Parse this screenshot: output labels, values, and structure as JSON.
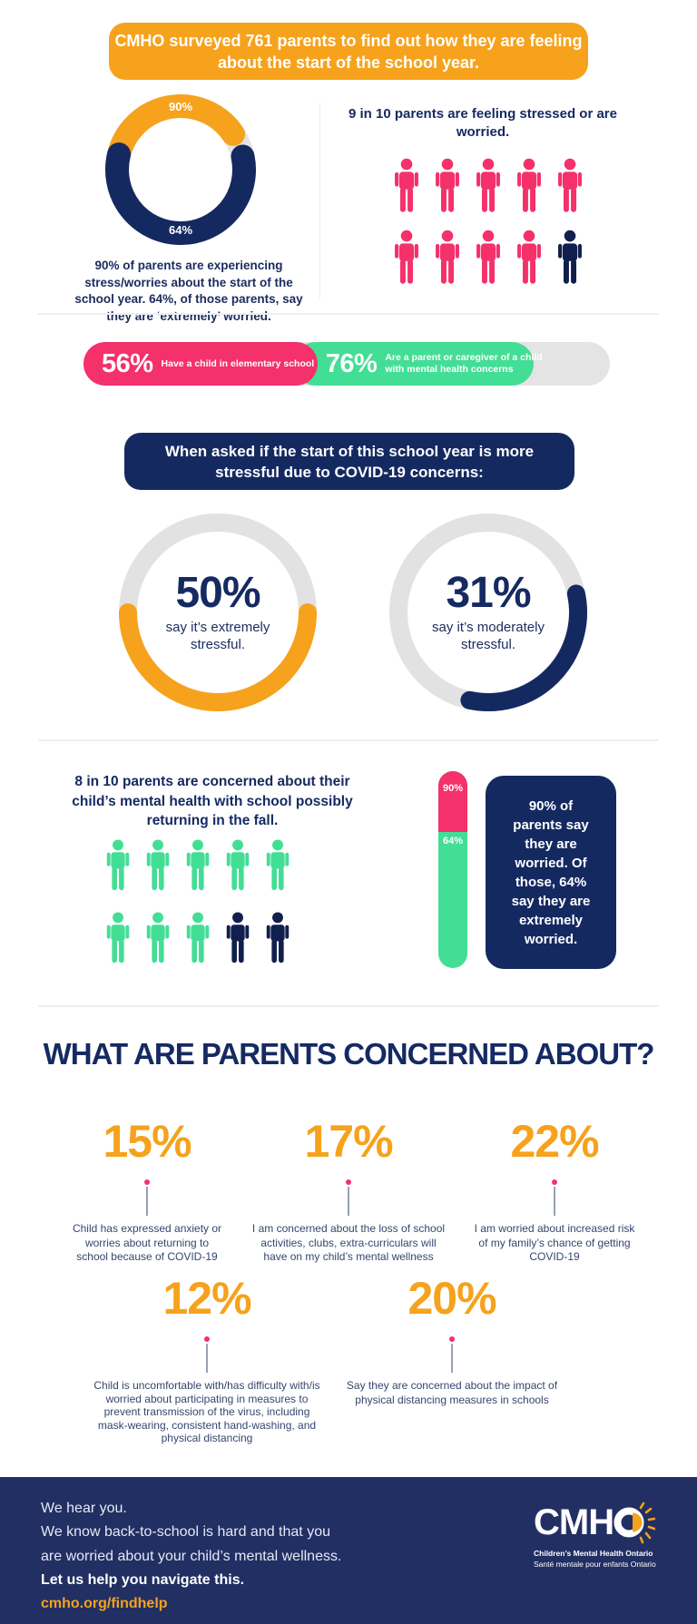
{
  "colors": {
    "orange": "#F6A21C",
    "navy": "#152961",
    "pink": "#F4316B",
    "green": "#43DE95",
    "dark_person": "#101F4D",
    "track_gray": "#E4E4E4",
    "footer_navy": "#212F63",
    "text_navy": "#1B2B5E"
  },
  "header": {
    "banner": "CMHO surveyed 761 parents to find out how they are feeling about the start of the school year."
  },
  "survey": {
    "donut_top": "90%",
    "donut_bottom": "64%",
    "caption": "90% of parents are experiencing stress/worries about the start of the school year. 64%, of those parents, say they are ‘extremely’ worried.",
    "right_heading": "9 in 10 parents are feeling stressed or are worried."
  },
  "pill": {
    "seg1": {
      "pct": "56%",
      "text": "Have a child in elementary school"
    },
    "seg2": {
      "pct": "76%",
      "text": "Are a parent or caregiver of a child with mental health concerns"
    }
  },
  "covid_banner": "When asked if the start of this school year is more stressful due to COVID-19 concerns:",
  "rings": {
    "ring1": {
      "pct": "50%",
      "label": "say it’s extremely stressful."
    },
    "ring2": {
      "pct": "31%",
      "label": "say it’s moderately stressful."
    }
  },
  "fall": {
    "heading": "8 in 10 parents are concerned about their child’s mental health with school possibly returning in the fall.",
    "bar_top_label": "90%",
    "bar_bottom_label": "64%",
    "box_text": "90% of parents say they are worried. Of those, 64% say they are extremely worried."
  },
  "concerns": {
    "heading": "WHAT ARE PARENTS CONCERNED ABOUT?",
    "items": [
      {
        "pct": "15%",
        "text": "Child has expressed anxiety or worries about returning to school because of COVID-19"
      },
      {
        "pct": "17%",
        "text": "I am concerned about the loss of school activities, clubs, extra-curriculars will have on my child’s mental wellness"
      },
      {
        "pct": "22%",
        "text": "I am worried about increased risk of my family’s chance of getting COVID-19"
      },
      {
        "pct": "12%",
        "text": "Child is uncomfortable with/has difficulty with/is worried about participating in measures to prevent transmission of the virus, including mask-wearing, consistent hand-washing, and physical distancing"
      },
      {
        "pct": "20%",
        "text": "Say they are concerned about the impact of physical distancing measures in schools"
      }
    ]
  },
  "footer": {
    "lines": [
      "We hear you.",
      "We know back-to-school is hard and that you",
      "are worried about your child’s mental wellness."
    ],
    "bold_line": "Let us help you navigate this.",
    "link": "cmho.org/findhelp",
    "logo": {
      "name": "CMHO",
      "prefix": "CMH",
      "sub1": "Children’s Mental Health Ontario",
      "sub2": "Santé mentale pour enfants Ontario"
    }
  },
  "viz": {
    "donut1": {
      "size": 168,
      "r": 70,
      "sw": 26,
      "base": "#E4E4E4",
      "segs": [
        {
          "color": "#F6A21C",
          "start": -76,
          "sweep": 132
        },
        {
          "color": "#152961",
          "start": 78,
          "sweep": 206
        }
      ]
    },
    "ring1": {
      "size": 220,
      "r": 99,
      "sw": 20,
      "base": "#E2E2E2",
      "segs": [
        {
          "color": "#F6A21C",
          "start": 90,
          "sweep": 180
        }
      ]
    },
    "ring2": {
      "size": 220,
      "r": 99,
      "sw": 20,
      "base": "#E2E2E2",
      "segs": [
        {
          "color": "#152961",
          "start": 78,
          "sweep": 114
        }
      ]
    },
    "grid1": {
      "cols": 5,
      "iw": 36,
      "ih": 66,
      "gx": 9,
      "gy": 13,
      "colors": [
        "#F4316B",
        "#F4316B",
        "#F4316B",
        "#F4316B",
        "#F4316B",
        "#F4316B",
        "#F4316B",
        "#F4316B",
        "#F4316B",
        "#101F4D"
      ]
    },
    "grid2": {
      "cols": 5,
      "iw": 34,
      "ih": 62,
      "gx": 10,
      "gy": 18,
      "colors": [
        "#43DE95",
        "#43DE95",
        "#43DE95",
        "#43DE95",
        "#43DE95",
        "#43DE95",
        "#43DE95",
        "#43DE95",
        "#101F4D",
        "#101F4D"
      ]
    }
  },
  "chart_data": [
    {
      "type": "pie",
      "subtype": "donut",
      "title": "Parents experiencing stress/worries about start of school year",
      "labels": [
        "experiencing stress/worries",
        "of those, extremely worried"
      ],
      "values": [
        90,
        64
      ],
      "colors": [
        "#F6A21C",
        "#152961"
      ],
      "annotations": [
        "90%",
        "64%"
      ]
    },
    {
      "type": "pictograph",
      "title": "9 in 10 parents are feeling stressed or are worried.",
      "total": 10,
      "highlighted": 9,
      "highlight_color": "#F4316B",
      "rest_color": "#101F4D"
    },
    {
      "type": "bar",
      "subtype": "horizontal-stacked-pill",
      "categories": [
        "Have a child in elementary school",
        "Are a parent or caregiver of a child with mental health concerns"
      ],
      "values": [
        56,
        76
      ],
      "colors": [
        "#F4316B",
        "#43DE95"
      ]
    },
    {
      "type": "pie",
      "subtype": "progress-ring",
      "title": "say it's extremely stressful.",
      "values": [
        50
      ],
      "colors": [
        "#F6A21C"
      ]
    },
    {
      "type": "pie",
      "subtype": "progress-ring",
      "title": "say it's moderately stressful.",
      "values": [
        31
      ],
      "colors": [
        "#152961"
      ]
    },
    {
      "type": "pictograph",
      "title": "8 in 10 parents are concerned about their child's mental health with school possibly returning in the fall.",
      "total": 10,
      "highlighted": 8,
      "highlight_color": "#43DE95",
      "rest_color": "#101F4D"
    },
    {
      "type": "bar",
      "subtype": "vertical-stacked",
      "categories": [
        "say they are worried",
        "say they are extremely worried"
      ],
      "values": [
        90,
        64
      ],
      "colors": [
        "#F4316B",
        "#43DE95"
      ]
    },
    {
      "type": "bar",
      "subtype": "stat-callouts",
      "title": "WHAT ARE PARENTS CONCERNED ABOUT?",
      "categories": [
        "Child has expressed anxiety or worries about returning to school because of COVID-19",
        "I am concerned about the loss of school activities, clubs, extra-curriculars will have on my child's mental wellness",
        "I am worried about increased risk of my family's chance of getting COVID-19",
        "Child is uncomfortable with/has difficulty with/is worried about participating in measures to prevent transmission of the virus, including mask-wearing, consistent hand-washing, and physical distancing",
        "Say they are concerned about the impact of physical distancing measures in schools"
      ],
      "values": [
        15,
        17,
        22,
        12,
        20
      ]
    }
  ]
}
